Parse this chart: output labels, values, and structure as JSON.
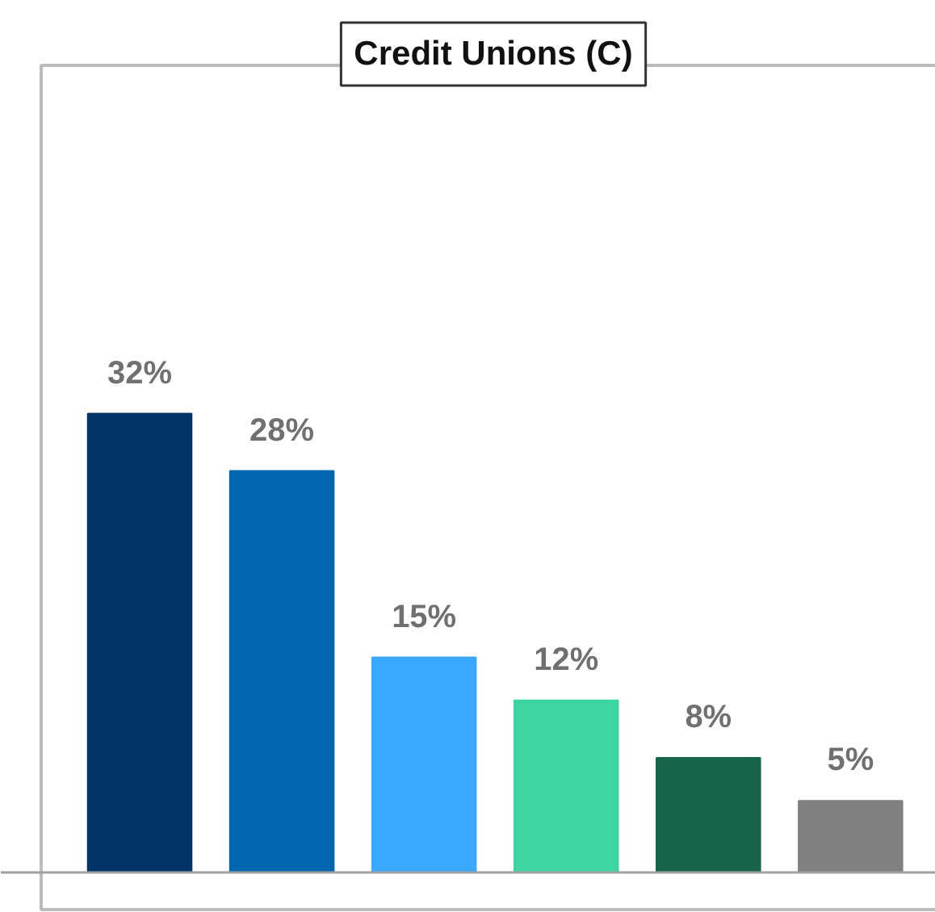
{
  "chart_data": {
    "type": "bar",
    "title": "Credit Unions (C)",
    "categories": [
      null,
      null,
      null,
      null,
      null,
      null
    ],
    "values": [
      32,
      28,
      15,
      12,
      8,
      5
    ],
    "colors": [
      "#003466",
      "#0066b0",
      "#38a9ff",
      "#3dd6a3",
      "#16654a",
      "#808080"
    ],
    "value_labels": [
      "32%",
      "28%",
      "15%",
      "12%",
      "8%",
      "5%"
    ]
  }
}
